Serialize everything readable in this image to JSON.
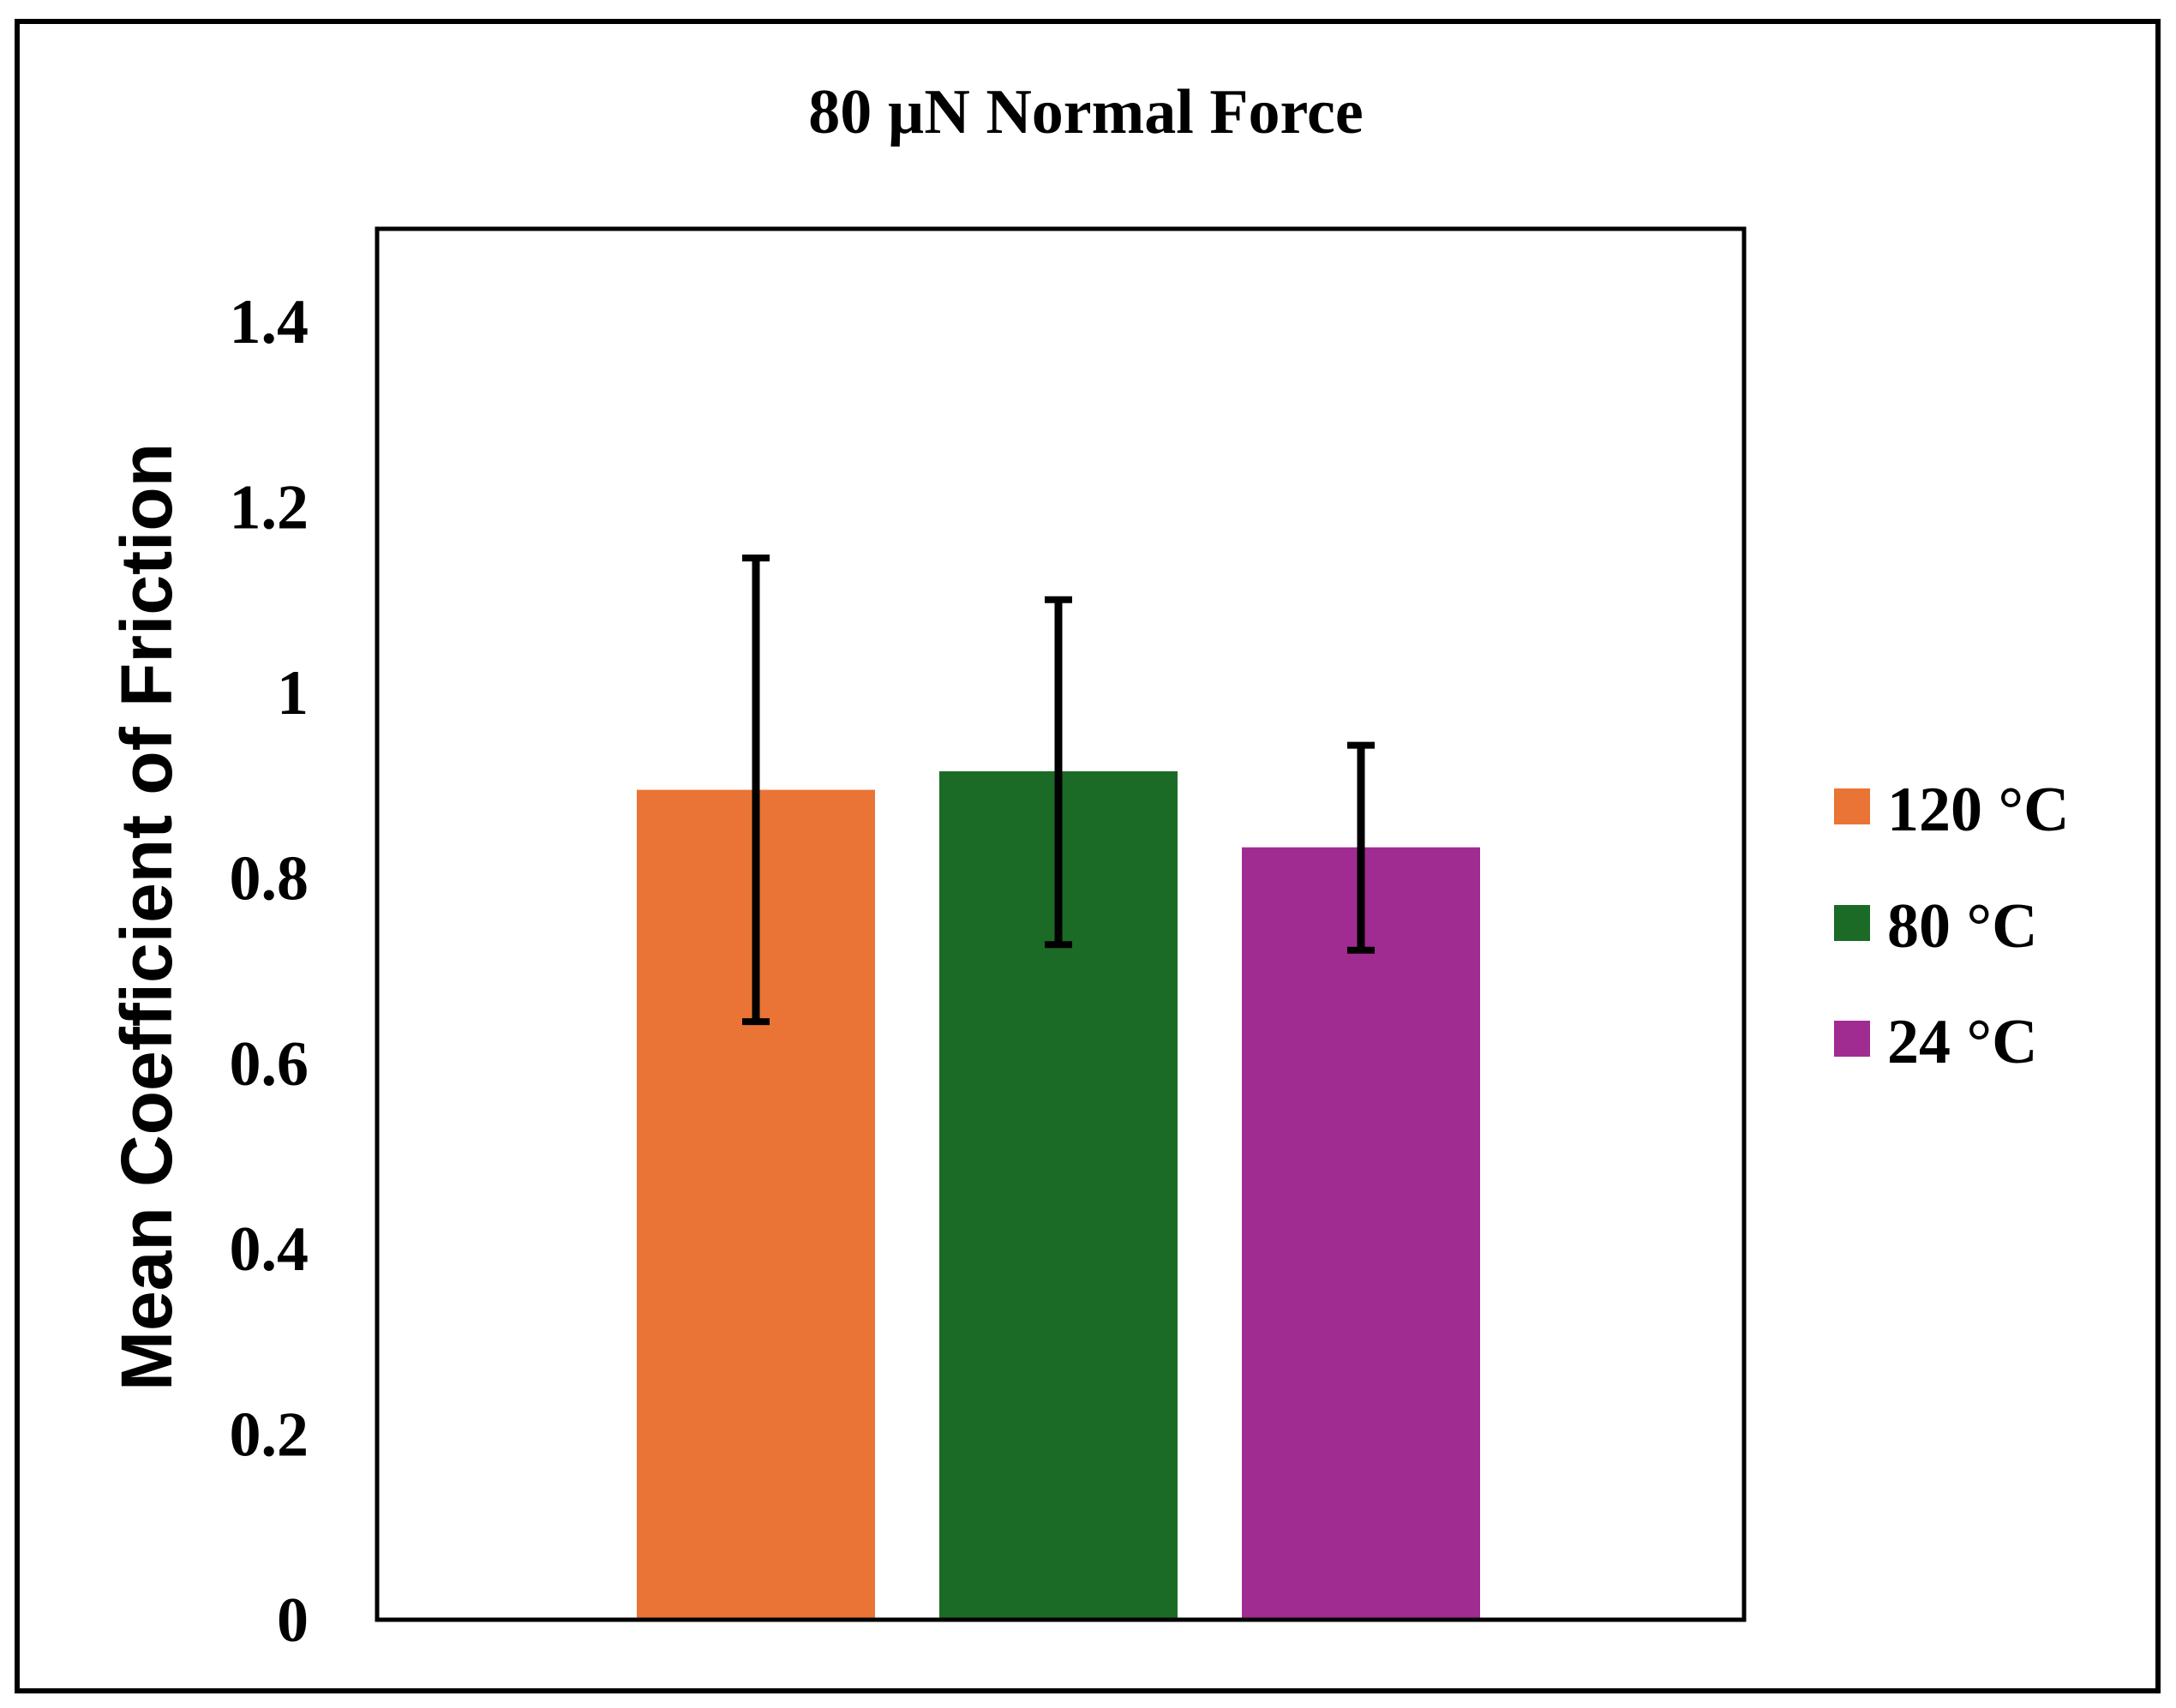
{
  "chart_data": {
    "type": "bar",
    "title": "80 µN Normal Force",
    "xlabel": "",
    "ylabel": "Mean Coefficient of Friction",
    "ylim": [
      0,
      1.5
    ],
    "yticks": [
      0,
      0.2,
      0.4,
      0.6,
      0.8,
      1,
      1.2,
      1.4
    ],
    "ytick_labels": [
      "0",
      "0.2",
      "0.4",
      "0.6",
      "0.8",
      "1",
      "1.2",
      "1.4"
    ],
    "grid": false,
    "legend_position": "right",
    "series": [
      {
        "name": "120 °C",
        "value": 0.895,
        "error_low": 0.645,
        "error_high": 1.145,
        "color": "#E97435"
      },
      {
        "name": "80 °C",
        "value": 0.915,
        "error_low": 0.728,
        "error_high": 1.1,
        "color": "#1B6B26"
      },
      {
        "name": "24 °C",
        "value": 0.833,
        "error_low": 0.722,
        "error_high": 0.943,
        "color": "#A02C91"
      }
    ]
  }
}
